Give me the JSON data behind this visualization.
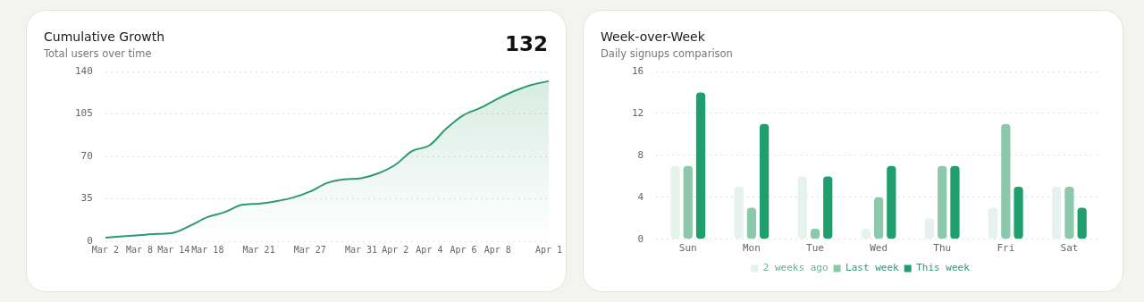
{
  "chart_data": [
    {
      "type": "area",
      "title": "Cumulative Growth",
      "subtitle": "Total users over time",
      "annotations": [
        "132"
      ],
      "categories": [
        "Mar 2",
        null,
        "Mar 8",
        null,
        "Mar 14",
        null,
        "Mar 18",
        null,
        null,
        "Mar 21",
        null,
        null,
        "Mar 27",
        null,
        null,
        "Mar 31",
        null,
        "Apr 2",
        null,
        "Apr 4",
        null,
        "Apr 6",
        null,
        "Apr 8",
        null,
        null,
        "Apr 1"
      ],
      "values": [
        3,
        4,
        5,
        6,
        7,
        13,
        20,
        24,
        30,
        31,
        33,
        36,
        41,
        48,
        51,
        52,
        56,
        63,
        74.5,
        79,
        93,
        104,
        110,
        117.5,
        124,
        129,
        132
      ],
      "color": "#2e9a6c",
      "ylim": [
        0,
        140
      ],
      "yticks": [
        0,
        35,
        70,
        105,
        140
      ],
      "grid": "y",
      "marker": "none",
      "legend": false
    },
    {
      "type": "bar",
      "title": "Week-over-Week",
      "subtitle": "Daily signups comparison",
      "categories": [
        "Sun",
        "Mon",
        "Tue",
        "Wed",
        "Thu",
        "Fri",
        "Sat"
      ],
      "series": [
        {
          "name": "2 weeks ago",
          "color": "#e6f2ec",
          "values": [
            7,
            5,
            6,
            1,
            2,
            3,
            5
          ]
        },
        {
          "name": "Last week",
          "color": "#8cc8ab",
          "values": [
            7,
            3,
            1,
            4,
            7,
            11,
            5
          ]
        },
        {
          "name": "This week",
          "color": "#1f9e6e",
          "values": [
            14,
            11,
            6,
            7,
            7,
            5,
            3
          ]
        }
      ],
      "ylim": [
        0,
        16
      ],
      "yticks": [
        0,
        4,
        8,
        12,
        16
      ],
      "grid": "y",
      "legend": "bottom"
    }
  ]
}
